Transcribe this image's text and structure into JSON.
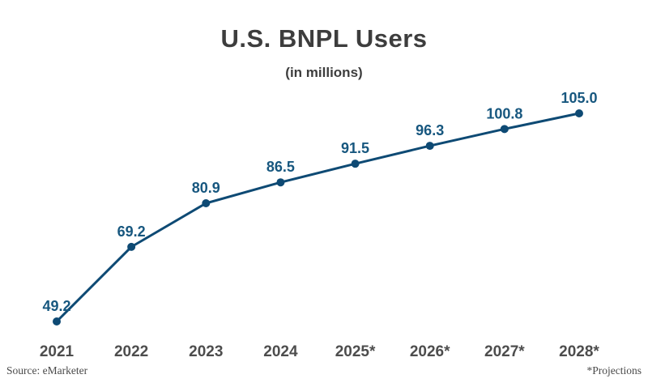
{
  "chart": {
    "title": "U.S. BNPL Users",
    "subtitle": "(in millions)",
    "source": "Source: eMarketer",
    "footnote": "*Projections"
  },
  "chart_data": {
    "type": "line",
    "title": "U.S. BNPL Users",
    "subtitle": "(in millions)",
    "categories": [
      "2021",
      "2022",
      "2023",
      "2024",
      "2025*",
      "2026*",
      "2027*",
      "2028*"
    ],
    "values": [
      49.2,
      69.2,
      80.9,
      86.5,
      91.5,
      96.3,
      100.8,
      105.0
    ],
    "data_labels": [
      "49.2",
      "69.2",
      "80.9",
      "86.5",
      "91.5",
      "96.3",
      "100.8",
      "105.0"
    ],
    "xlabel": "",
    "ylabel": "",
    "ylim": [
      44,
      112
    ],
    "grid": false,
    "legend": false,
    "source": "Source: eMarketer",
    "footnote": "*Projections",
    "colors": {
      "line": "#0e4a74",
      "point": "#0e4a74",
      "data_label": "#17577f",
      "axis_label": "#4d4d4d",
      "title": "#3d3d3d",
      "footer_text": "#4a4a4a"
    }
  }
}
